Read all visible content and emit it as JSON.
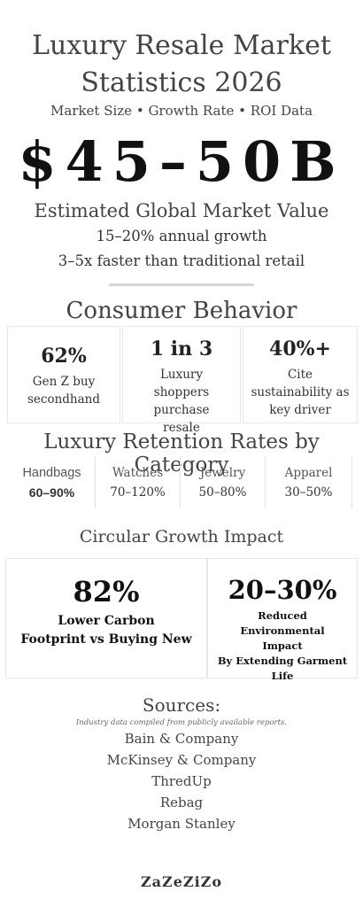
{
  "header": {
    "title_line1": "Luxury Resale Market",
    "title_line2": "Statistics 2026",
    "subtitle": "Market Size • Growth Rate • ROI Data"
  },
  "hero": {
    "value": "$45–50B",
    "caption": "Estimated Global Market Value",
    "line1": "15–20% annual growth",
    "line2": "3–5x faster than traditional retail"
  },
  "consumer": {
    "heading": "Consumer Behavior",
    "cards": [
      {
        "stat": "62%",
        "label": "Gen Z buy secondhand"
      },
      {
        "stat": "1 in 3",
        "label": "Luxury shoppers purchase resale"
      },
      {
        "stat": "40%+",
        "label": "Cite sustainability as key driver"
      }
    ]
  },
  "retention": {
    "heading": "Luxury Retention Rates by Category",
    "items": [
      {
        "category": "Handbags",
        "range": "60–90%"
      },
      {
        "category": "Watches",
        "range": "70–120%"
      },
      {
        "category": "Jewelry",
        "range": "50–80%"
      },
      {
        "category": "Apparel",
        "range": "30–50%"
      }
    ]
  },
  "circular": {
    "heading": "Circular Growth Impact",
    "cards": [
      {
        "stat": "82%",
        "label_line1": "Lower Carbon",
        "label_line2": "Footprint vs Buying New"
      },
      {
        "stat": "20–30%",
        "label_line1": "Reduced Environmental Impact",
        "label_line2": "By Extending Garment Life"
      }
    ]
  },
  "sources": {
    "heading": "Sources:",
    "note": "Industry data compiled from publicly available reports.",
    "items": [
      "Bain & Company",
      "McKinsey & Company",
      "ThredUp",
      "Rebag",
      "Morgan Stanley"
    ]
  },
  "footer": {
    "brand": "ZaZeZiZo"
  }
}
